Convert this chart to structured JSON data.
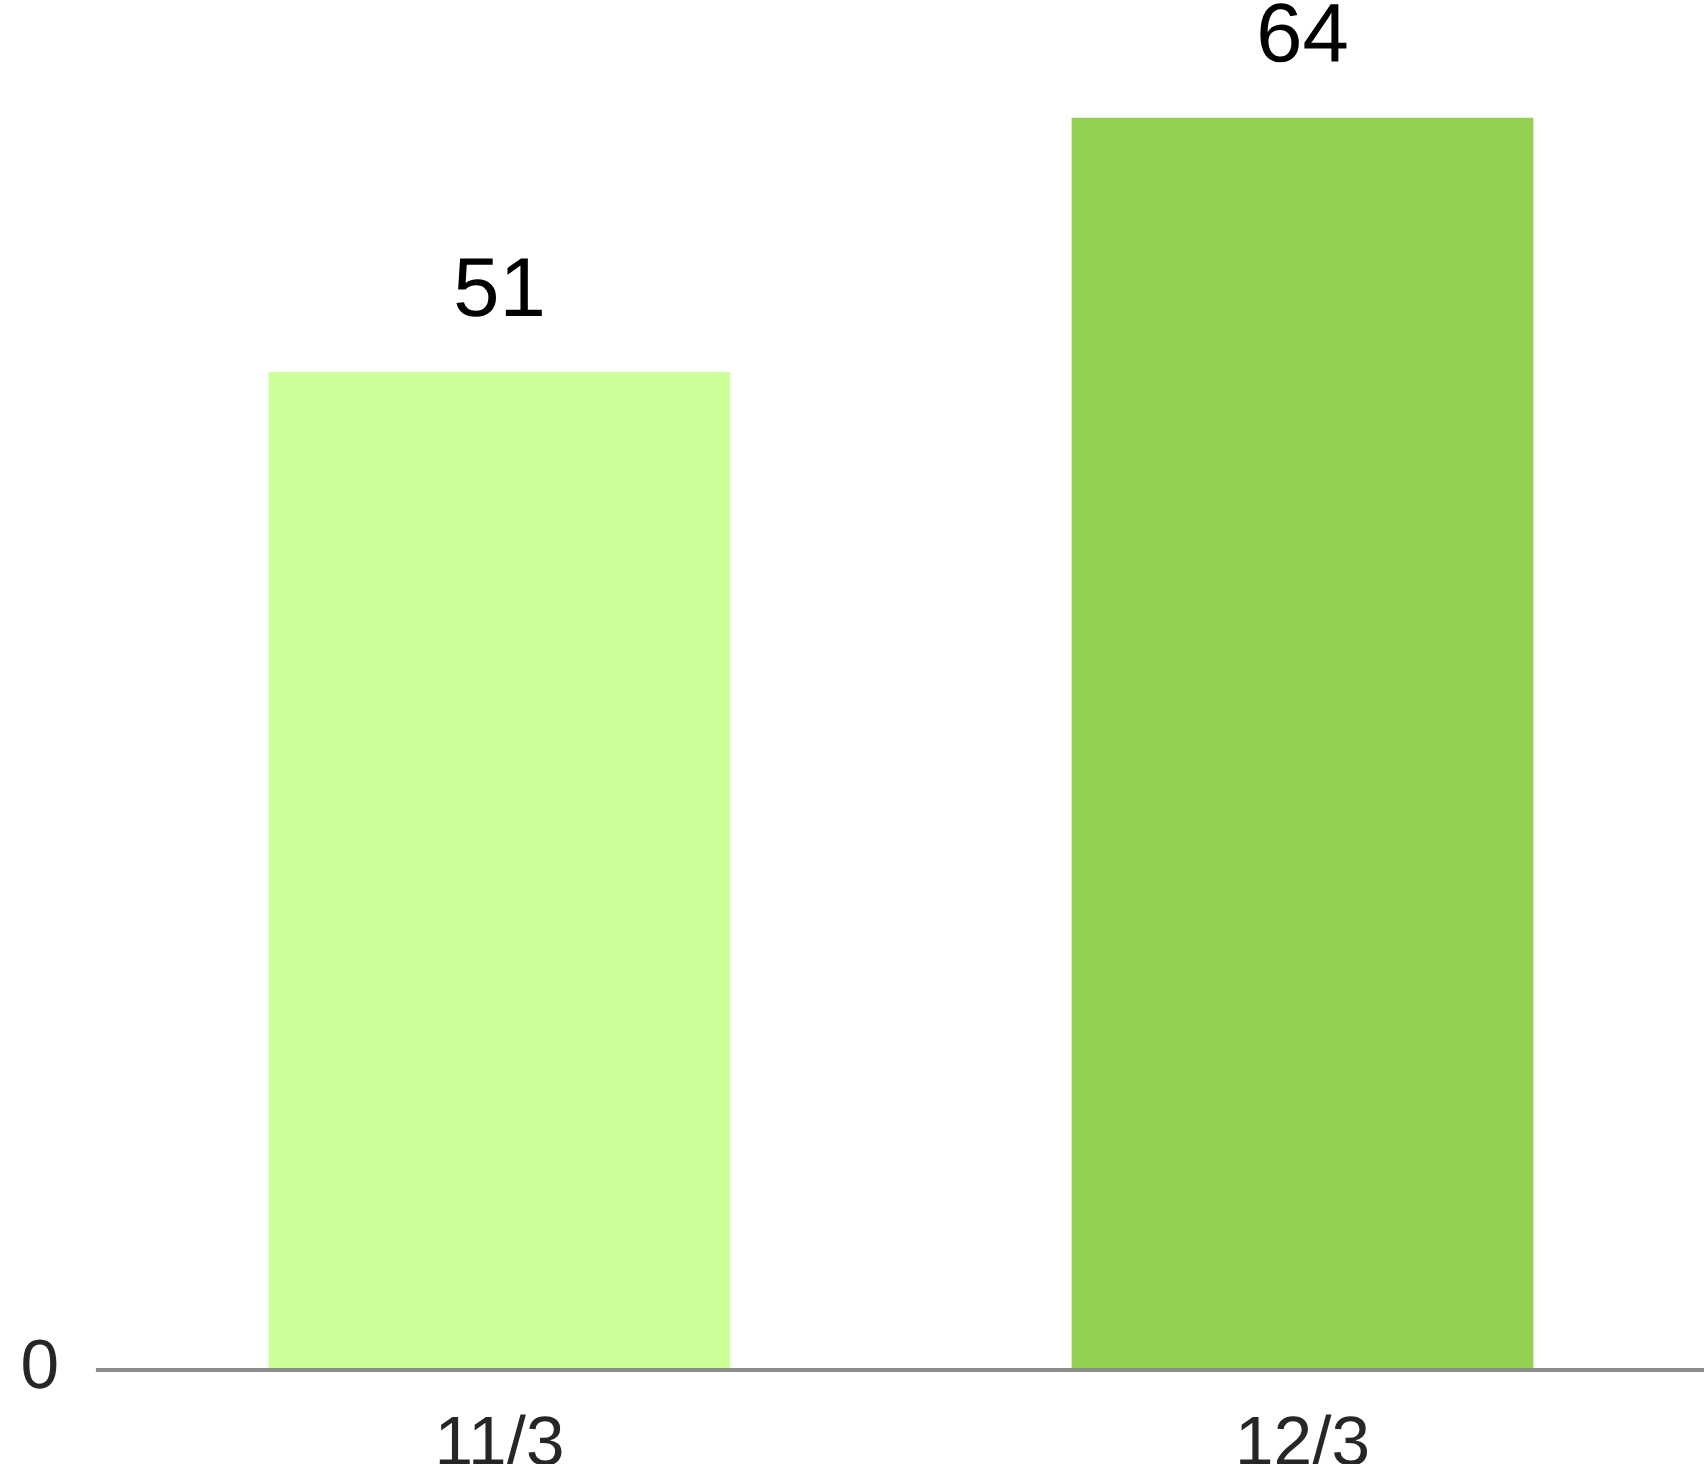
{
  "chart_data": {
    "type": "bar",
    "categories": [
      "11/3",
      "12/3"
    ],
    "values": [
      51,
      64
    ],
    "colors": [
      "#ccff99",
      "#92d050"
    ],
    "data_labels": true,
    "annotations": [
      "0"
    ]
  }
}
